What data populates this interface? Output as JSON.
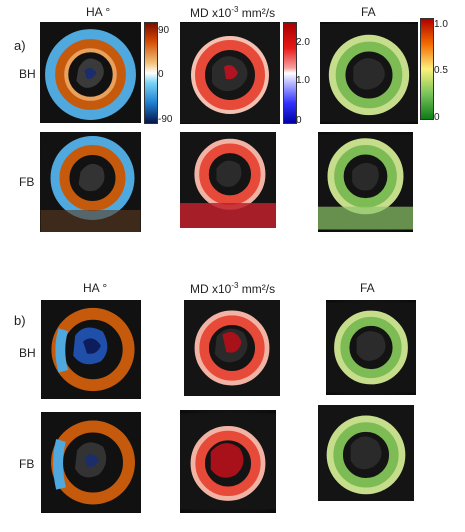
{
  "panel_a": {
    "label": "a)",
    "headers": {
      "ha": "HA °",
      "md_prefix": "MD x10",
      "md_exp": "-3",
      "md_suffix": " mm²/s",
      "fa": "FA"
    },
    "rows": {
      "bh": "BH",
      "fb": "FB"
    },
    "colorbars": {
      "ha": {
        "top": "90",
        "mid": "0",
        "bottom": "-90"
      },
      "md": {
        "top": "2.0",
        "mid": "1.0",
        "bottom": "0"
      },
      "fa": {
        "top": "1.0",
        "mid": "0.5",
        "bottom": "0"
      }
    }
  },
  "panel_b": {
    "label": "b)",
    "headers": {
      "ha": "HA °",
      "md_prefix": "MD x10",
      "md_exp": "-3",
      "md_suffix": " mm²/s",
      "fa": "FA"
    },
    "rows": {
      "bh": "BH",
      "fb": "FB"
    }
  },
  "colors": {
    "ha_warm": "#c55a0c",
    "ha_cool": "#4fa9df",
    "md_ring": "#e84a3a",
    "md_core": "#a8101a",
    "fa_ring": "#7dbb54",
    "fa_light": "#c6dd8c"
  }
}
